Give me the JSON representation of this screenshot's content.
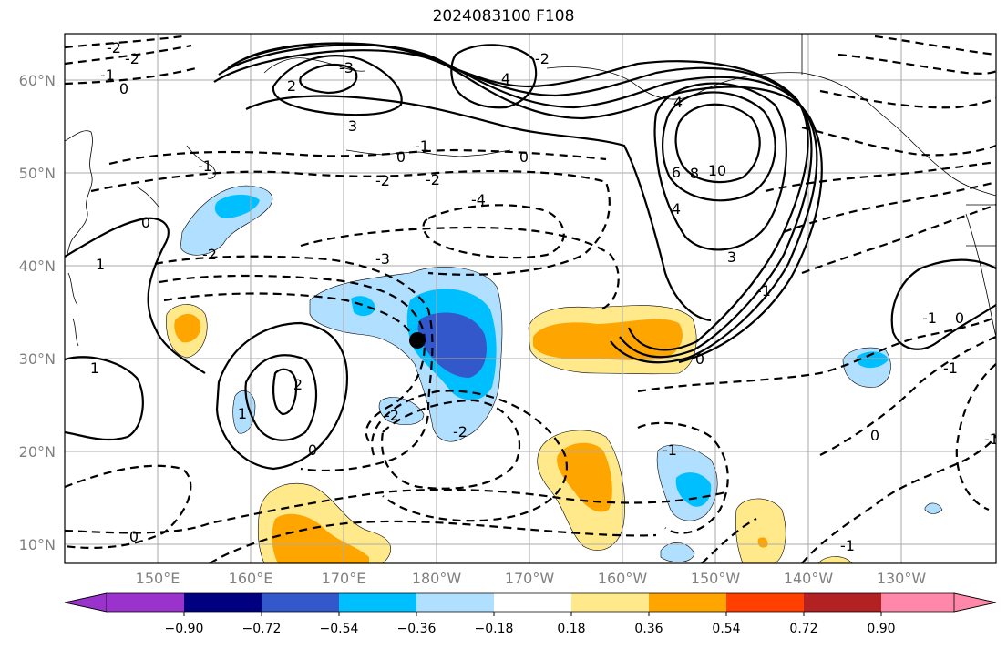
{
  "title": "2024083100 F108",
  "map": {
    "lat_labels": [
      "60°N",
      "50°N",
      "40°N",
      "30°N",
      "20°N",
      "10°N"
    ],
    "lon_labels": [
      "150°E",
      "160°E",
      "170°E",
      "180°W",
      "170°W",
      "160°W",
      "150°W",
      "140°W",
      "130°W"
    ],
    "contour_labels": [
      "-2",
      "-2",
      "-1",
      "0",
      "2",
      "4",
      "-3",
      "3",
      "-1",
      "0",
      "-1",
      "0",
      "-2",
      "-2",
      "-4",
      "-3",
      "4",
      "10",
      "8",
      "6",
      "4",
      "3",
      "-1",
      "-2",
      "1",
      "0",
      "-2",
      "0",
      "1",
      "2",
      "1",
      "0",
      "-2",
      "-2",
      "0",
      "-1",
      "-1",
      "-1",
      "0",
      "-1",
      "0",
      "-1"
    ],
    "marker": "storm-center"
  },
  "colorbar": {
    "tick_labels": [
      "−0.90",
      "−0.72",
      "−0.54",
      "−0.36",
      "−0.18",
      "0.18",
      "0.36",
      "0.54",
      "0.72",
      "0.90"
    ],
    "colors": [
      "#9933cc",
      "#000080",
      "#3358cc",
      "#00bfff",
      "#b0dfff",
      "#ffffff",
      "#ffe98a",
      "#ffa500",
      "#ff4000",
      "#b22222",
      "#ff88aa"
    ]
  }
}
